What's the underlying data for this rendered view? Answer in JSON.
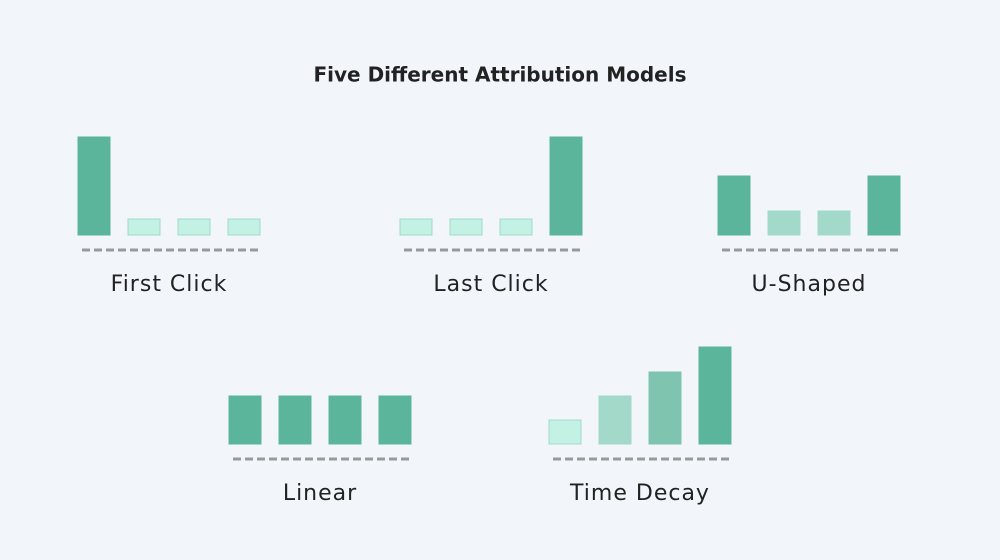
{
  "title": "Five Different Attribution Models",
  "chart_data": [
    {
      "type": "bar",
      "title": "First Click",
      "values": [
        98,
        16,
        16,
        16
      ],
      "colors": [
        "#5ab59a",
        "#c3f1e3",
        "#c3f1e3",
        "#c3f1e3"
      ]
    },
    {
      "type": "bar",
      "title": "Last Click",
      "values": [
        16,
        16,
        16,
        98
      ],
      "colors": [
        "#c3f1e3",
        "#c3f1e3",
        "#c3f1e3",
        "#5ab59a"
      ]
    },
    {
      "type": "bar",
      "title": "U-Shaped",
      "values": [
        59,
        24,
        24,
        59
      ],
      "colors": [
        "#5ab59a",
        "#a3d9c8",
        "#a3d9c8",
        "#5ab59a"
      ]
    },
    {
      "type": "bar",
      "title": "Linear",
      "values": [
        48,
        48,
        48,
        48
      ],
      "colors": [
        "#5ab59a",
        "#5ab59a",
        "#5ab59a",
        "#5ab59a"
      ]
    },
    {
      "type": "bar",
      "title": "Time Decay",
      "values": [
        24,
        48,
        72,
        97
      ],
      "colors": [
        "#c3f1e3",
        "#a3d9c8",
        "#7fc4ae",
        "#5ab59a"
      ]
    }
  ]
}
